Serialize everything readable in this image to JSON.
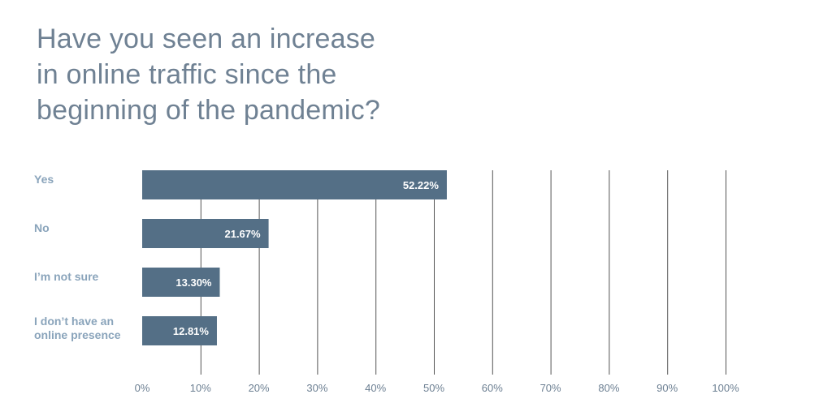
{
  "colors": {
    "bar": "#546f86",
    "grid": "#555555",
    "title": "#6f8193",
    "category_label": "#8aa4bb",
    "tick_label": "#6c7f92",
    "value_label": "#ffffff"
  },
  "chart_data": {
    "type": "bar",
    "orientation": "horizontal",
    "title_lines": [
      "Have you seen an increase",
      "in online traffic since the",
      "beginning of the pandemic?"
    ],
    "categories": [
      [
        "Yes"
      ],
      [
        "No"
      ],
      [
        "I’m not sure"
      ],
      [
        "I don’t have an",
        "online presence"
      ]
    ],
    "values": [
      52.22,
      21.67,
      13.3,
      12.81
    ],
    "value_labels": [
      "52.22%",
      "21.67%",
      "13.30%",
      "12.81%"
    ],
    "xlim": [
      0,
      100
    ],
    "x_ticks": [
      0,
      10,
      20,
      30,
      40,
      50,
      60,
      70,
      80,
      90,
      100
    ],
    "x_tick_labels": [
      "0%",
      "10%",
      "20%",
      "30%",
      "40%",
      "50%",
      "60%",
      "70%",
      "80%",
      "90%",
      "100%"
    ],
    "grid": true,
    "legend": "none"
  }
}
